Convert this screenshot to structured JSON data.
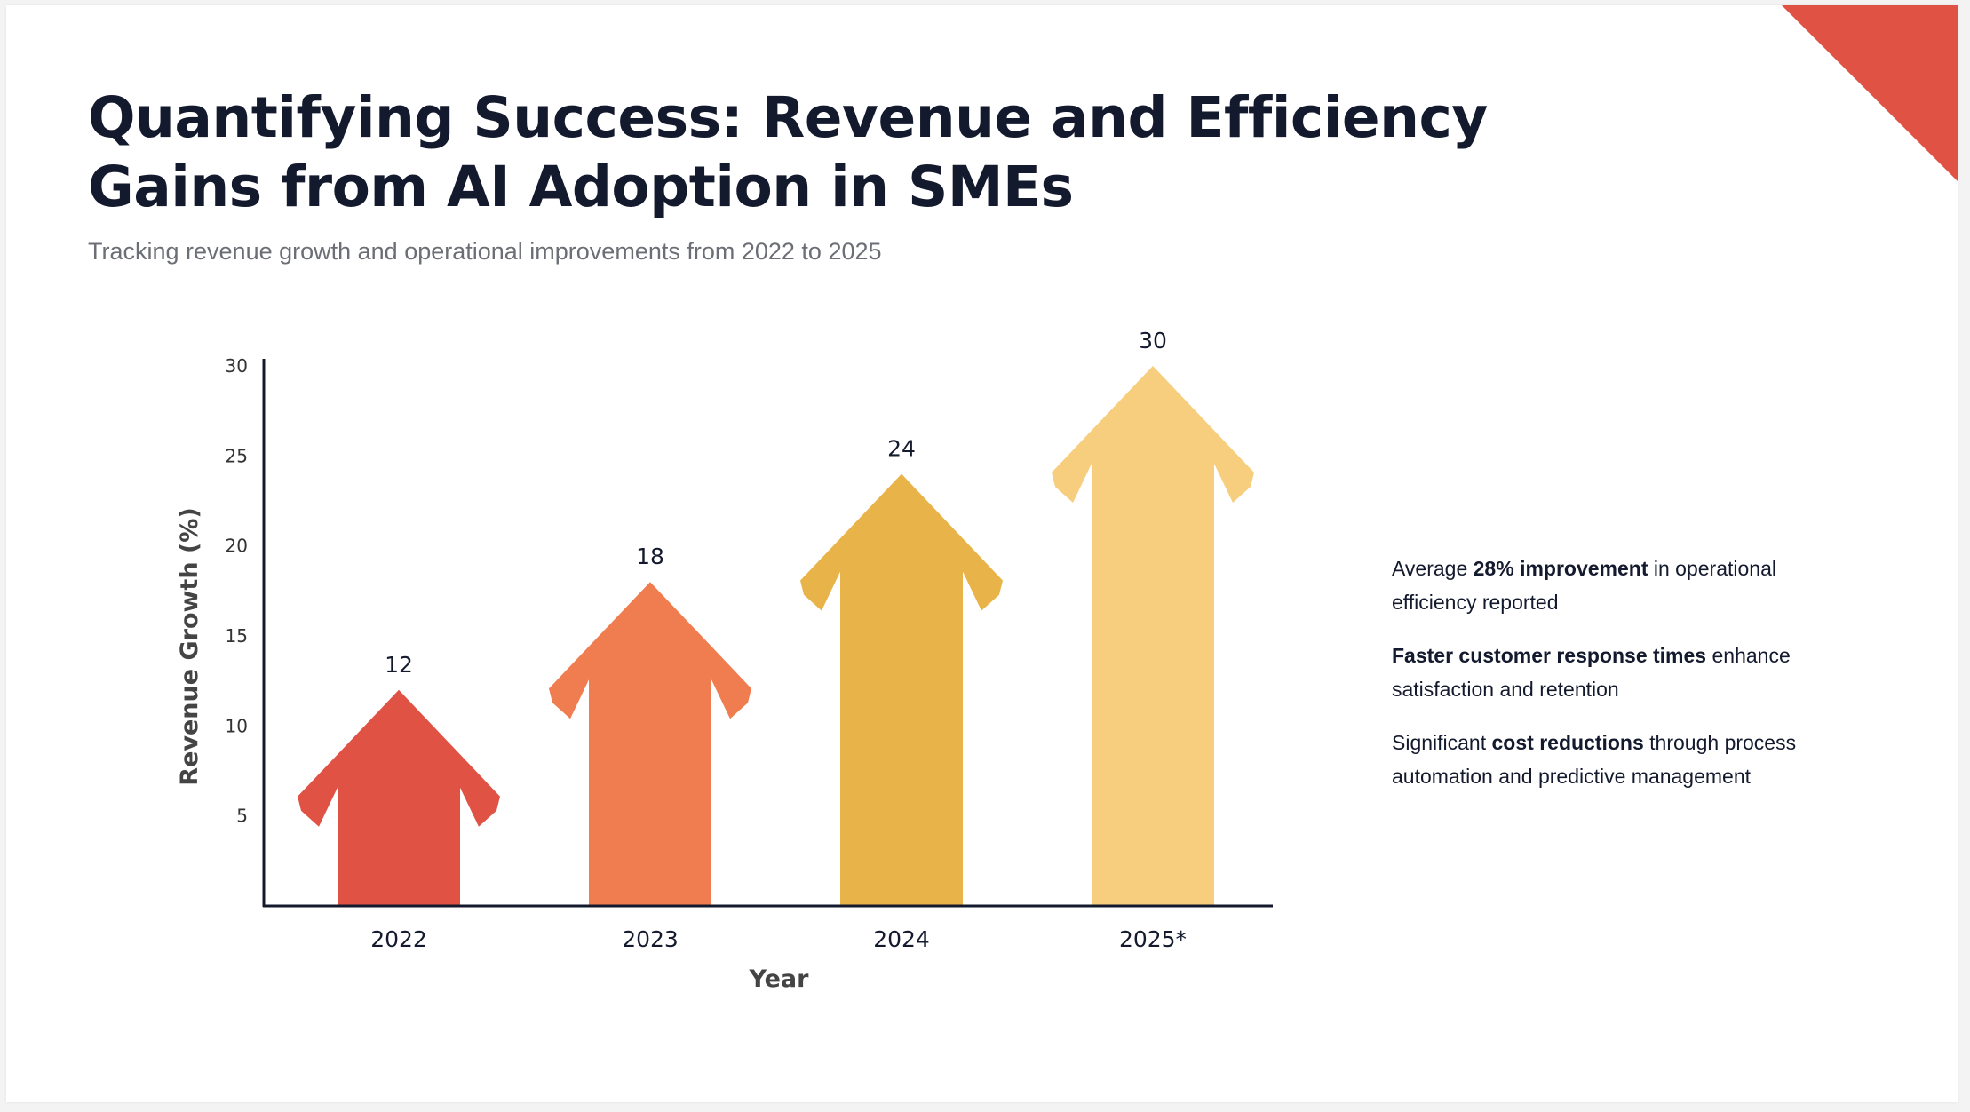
{
  "title_line1": "Quantifying Success: Revenue and Efficiency",
  "title_line2": "Gains from AI Adoption in SMEs",
  "subtitle": "Tracking revenue growth and operational improvements from 2022 to 2025",
  "colors": {
    "accent": "#e05243",
    "bars": [
      "#e05243",
      "#ef7d4f",
      "#e8b44a",
      "#f6ce7e"
    ]
  },
  "chart_data": {
    "type": "bar",
    "categories": [
      "2022",
      "2023",
      "2024",
      "2025*"
    ],
    "values": [
      12,
      18,
      24,
      30
    ],
    "xlabel": "Year",
    "ylabel": "Revenue Growth (%)",
    "ylim": [
      0,
      30
    ],
    "yticks": [
      5,
      10,
      15,
      20,
      25,
      30
    ],
    "grid": false,
    "mark": "arrow"
  },
  "notes": [
    {
      "pre": "Average ",
      "bold": "28% improvement",
      "post": " in operational efficiency reported"
    },
    {
      "pre": "",
      "bold": "Faster customer response times",
      "post": " enhance satisfaction and retention"
    },
    {
      "pre": "Significant ",
      "bold": "cost reductions",
      "post": " through process automation and predictive management"
    }
  ]
}
